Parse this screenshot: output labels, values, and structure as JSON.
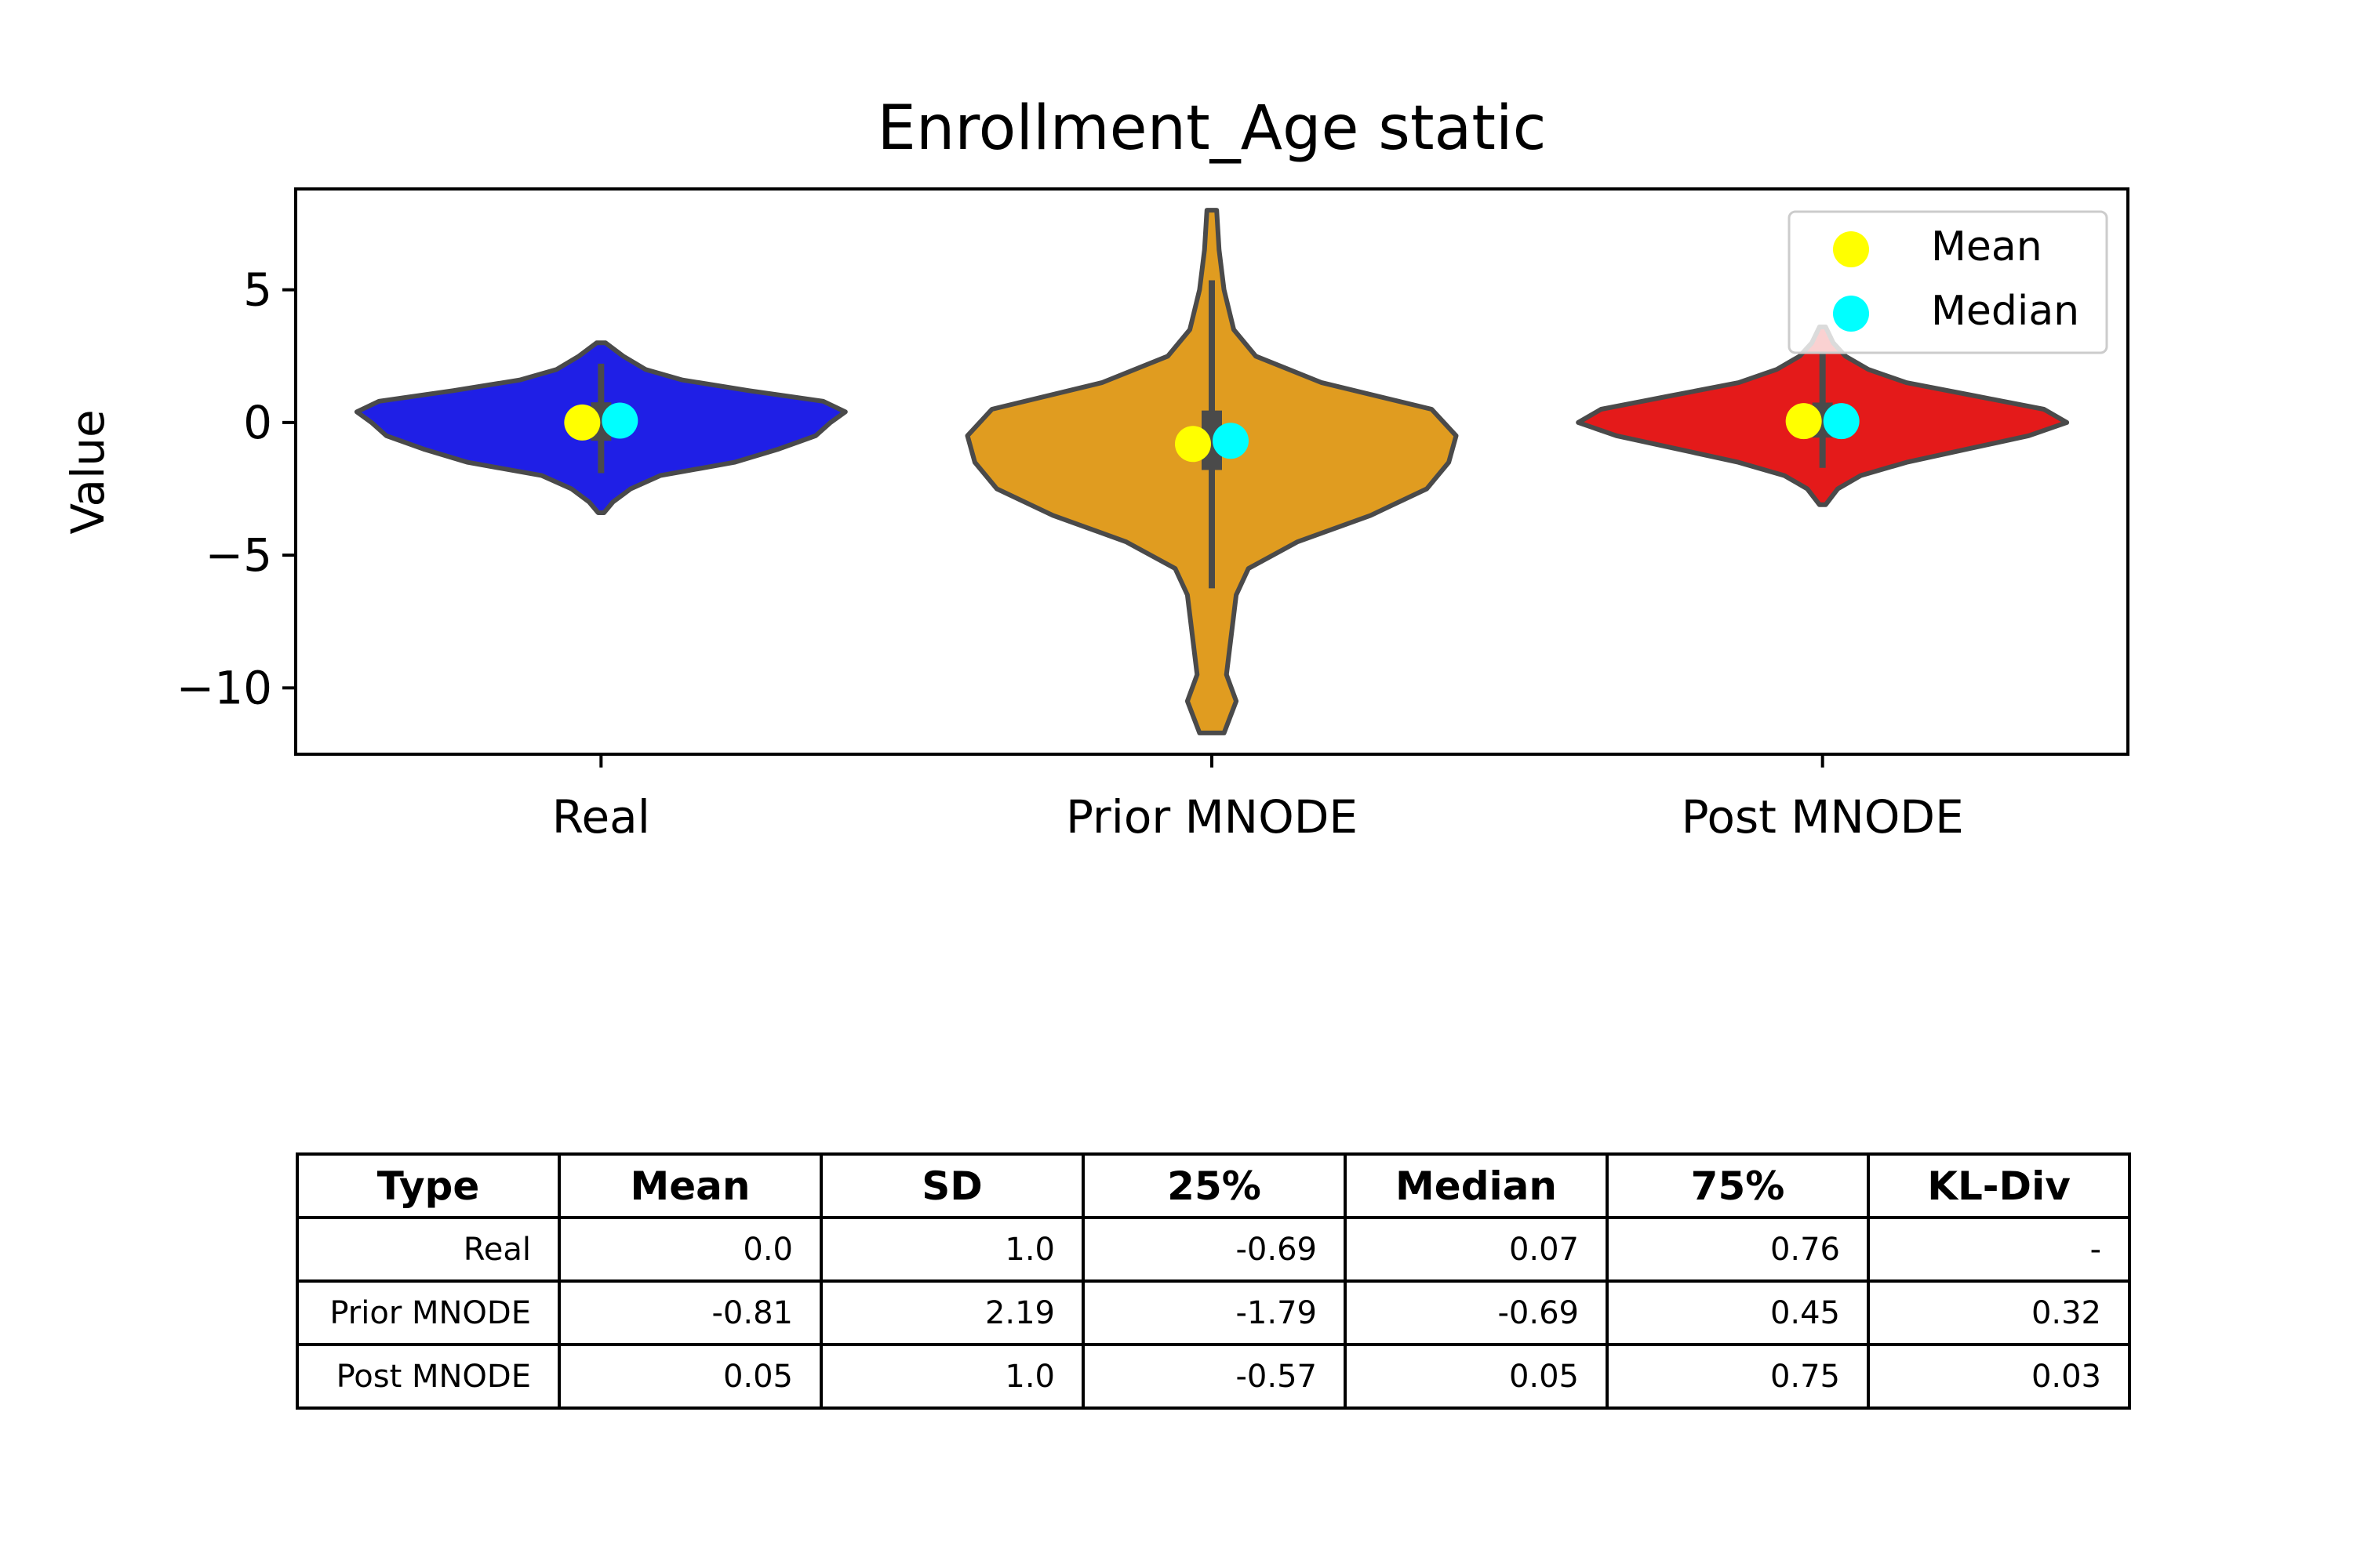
{
  "chart_data": {
    "type": "violin",
    "title": "Enrollment_Age static",
    "xlabel": "",
    "ylabel": "Value",
    "ylim": [
      -12.5,
      8.8
    ],
    "yticks": [
      5,
      0,
      -5,
      -10
    ],
    "ytick_labels": [
      "5",
      "0",
      "−5",
      "−10"
    ],
    "grid": false,
    "categories": [
      "Real",
      "Prior MNODE",
      "Post MNODE"
    ],
    "series": [
      {
        "category": "Real",
        "color": "#1f1fe6",
        "min": -3.4,
        "max": 3.0,
        "q1": -0.69,
        "q3": 0.76,
        "mean": 0.0,
        "median": 0.07,
        "profile": [
          [
            -3.4,
            0.02
          ],
          [
            -3.0,
            0.08
          ],
          [
            -2.5,
            0.2
          ],
          [
            -2.0,
            0.4
          ],
          [
            -1.5,
            0.9
          ],
          [
            -1.0,
            1.2
          ],
          [
            -0.5,
            1.45
          ],
          [
            0.0,
            1.55
          ],
          [
            0.4,
            1.65
          ],
          [
            0.8,
            1.5
          ],
          [
            1.2,
            1.0
          ],
          [
            1.6,
            0.55
          ],
          [
            2.0,
            0.3
          ],
          [
            2.5,
            0.15
          ],
          [
            3.0,
            0.03
          ]
        ]
      },
      {
        "category": "Prior MNODE",
        "color": "#e09c20",
        "min": -11.7,
        "max": 8.0,
        "q1": -1.79,
        "q3": 0.45,
        "mean": -0.81,
        "median": -0.69,
        "profile": [
          [
            -11.7,
            0.05
          ],
          [
            -10.5,
            0.1
          ],
          [
            -9.5,
            0.06
          ],
          [
            -8.0,
            0.08
          ],
          [
            -6.5,
            0.1
          ],
          [
            -5.5,
            0.15
          ],
          [
            -4.5,
            0.35
          ],
          [
            -3.5,
            0.65
          ],
          [
            -2.5,
            0.88
          ],
          [
            -1.5,
            0.97
          ],
          [
            -0.5,
            1.0
          ],
          [
            0.5,
            0.9
          ],
          [
            1.5,
            0.45
          ],
          [
            2.5,
            0.18
          ],
          [
            3.5,
            0.09
          ],
          [
            5.0,
            0.05
          ],
          [
            6.5,
            0.03
          ],
          [
            8.0,
            0.02
          ]
        ]
      },
      {
        "category": "Post MNODE",
        "color": "#e41a1a",
        "min": -3.1,
        "max": 3.6,
        "q1": -0.57,
        "q3": 0.75,
        "mean": 0.05,
        "median": 0.05,
        "profile": [
          [
            -3.1,
            0.02
          ],
          [
            -2.5,
            0.1
          ],
          [
            -2.0,
            0.25
          ],
          [
            -1.5,
            0.55
          ],
          [
            -1.0,
            0.95
          ],
          [
            -0.5,
            1.35
          ],
          [
            0.0,
            1.6
          ],
          [
            0.5,
            1.45
          ],
          [
            1.0,
            1.0
          ],
          [
            1.5,
            0.55
          ],
          [
            2.0,
            0.3
          ],
          [
            2.5,
            0.15
          ],
          [
            3.0,
            0.07
          ],
          [
            3.6,
            0.02
          ]
        ]
      }
    ],
    "legend": {
      "position": "top-right",
      "entries": [
        {
          "label": "Mean",
          "color": "#ffff00"
        },
        {
          "label": "Median",
          "color": "#00ffff"
        }
      ]
    }
  },
  "table": {
    "headers": [
      "Type",
      "Mean",
      "SD",
      "25%",
      "Median",
      "75%",
      "KL-Div"
    ],
    "rows": [
      [
        "Real",
        "0.0",
        "1.0",
        "-0.69",
        "0.07",
        "0.76",
        "-"
      ],
      [
        "Prior MNODE",
        "-0.81",
        "2.19",
        "-1.79",
        "-0.69",
        "0.45",
        "0.32"
      ],
      [
        "Post MNODE",
        "0.05",
        "1.0",
        "-0.57",
        "0.05",
        "0.75",
        "0.03"
      ]
    ]
  }
}
